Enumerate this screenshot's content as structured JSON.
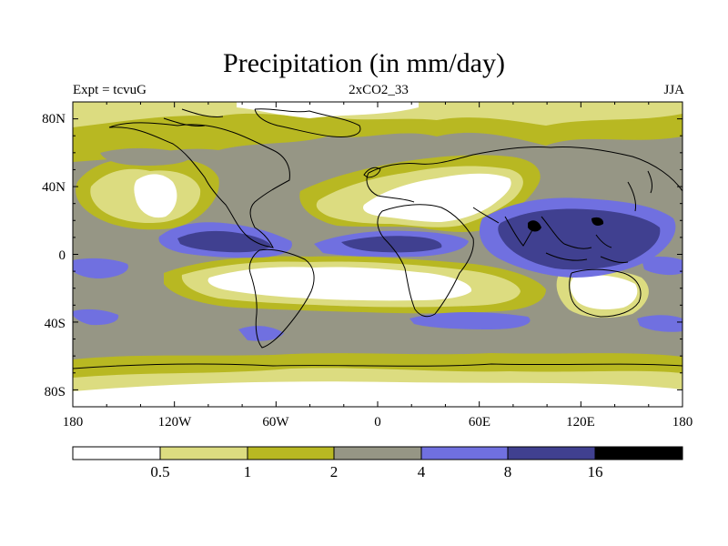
{
  "title": "Precipitation (in mm/day)",
  "subtitle_left": "Expt = tcvuG",
  "subtitle_center": "2xCO2_33",
  "subtitle_right": "JJA",
  "lon_ticks": [
    "180",
    "120W",
    "60W",
    "0",
    "60E",
    "120E",
    "180"
  ],
  "lat_ticks": [
    "80N",
    "40N",
    "0",
    "40S",
    "80S"
  ],
  "colorbar": {
    "labels": [
      "0.5",
      "1",
      "2",
      "4",
      "8",
      "16"
    ],
    "colors": [
      "#ffffff",
      "#dcdc80",
      "#b8b822",
      "#969685",
      "#7070e0",
      "#404090",
      "#000000"
    ]
  },
  "colors": {
    "white": "#ffffff",
    "light_yellow": "#dcdc80",
    "olive": "#b8b822",
    "gray": "#969685",
    "light_blue": "#7070e0",
    "dark_blue": "#404090",
    "black": "#000000"
  }
}
